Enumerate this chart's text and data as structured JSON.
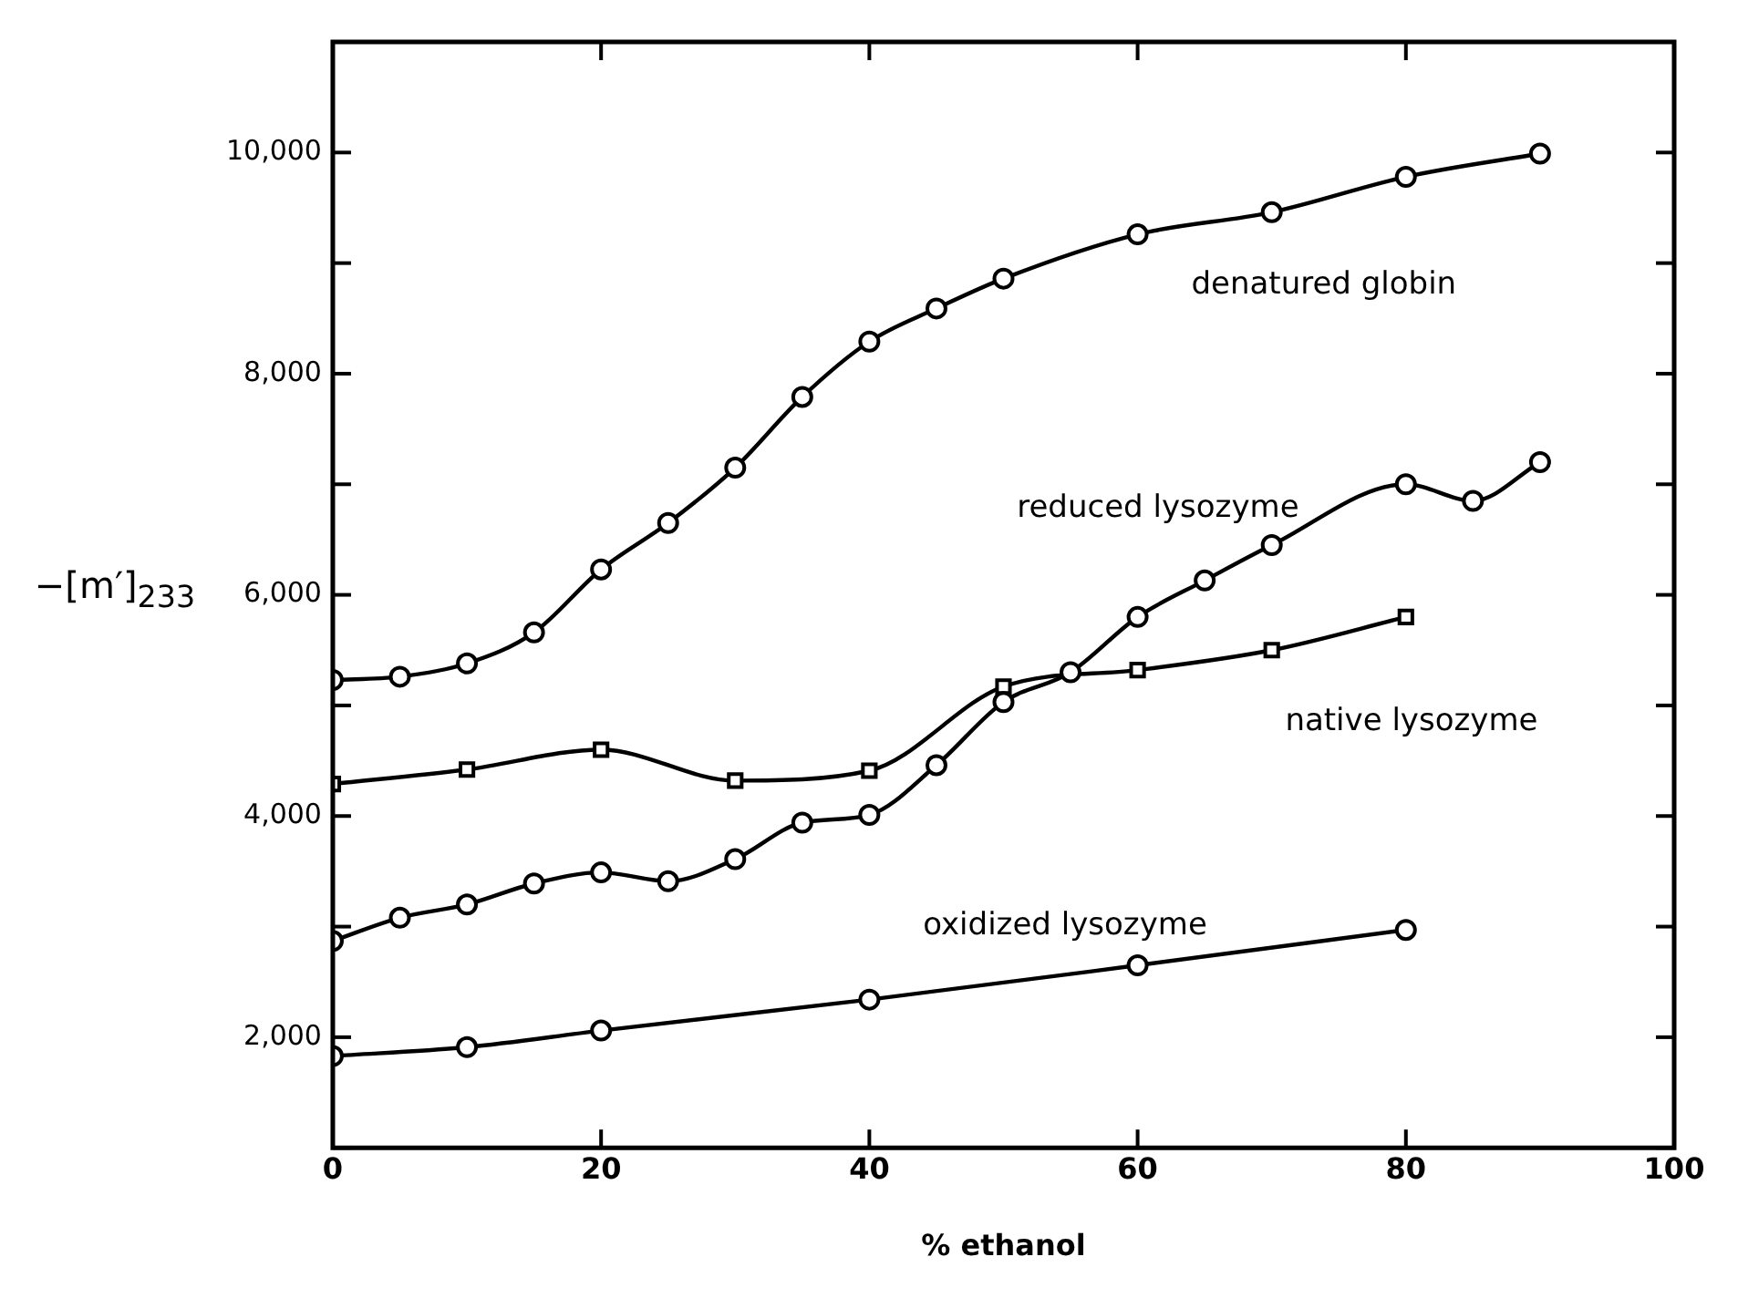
{
  "chart_data": {
    "type": "line",
    "xlabel": "% ethanol",
    "ylabel": "−[m′]$_{233}$",
    "xlim": [
      0,
      100
    ],
    "xticks": [
      0,
      20,
      40,
      60,
      80,
      100
    ],
    "ylim": [
      1000,
      11000
    ],
    "yticks": [
      {
        "value": 1000,
        "label": null
      },
      {
        "value": 2000,
        "label": "2,000"
      },
      {
        "value": 3000,
        "label": null
      },
      {
        "value": 4000,
        "label": "4,000"
      },
      {
        "value": 5000,
        "label": null
      },
      {
        "value": 6000,
        "label": "6,000"
      },
      {
        "value": 7000,
        "label": null
      },
      {
        "value": 8000,
        "label": "8,000"
      },
      {
        "value": 9000,
        "label": null
      },
      {
        "value": 10000,
        "label": "10,000"
      },
      {
        "value": 11000,
        "label": null
      }
    ],
    "grid": false,
    "legend": false,
    "line_style": "solid",
    "series": [
      {
        "name": "denatured globin",
        "color": "#000000",
        "marker": "circle",
        "x": [
          0,
          5,
          10,
          15,
          20,
          25,
          30,
          35,
          40,
          45,
          50,
          60,
          70,
          80,
          90
        ],
        "values": [
          5230,
          5260,
          5380,
          5660,
          6230,
          6650,
          7150,
          7790,
          8290,
          8590,
          8860,
          9260,
          9460,
          9780,
          9990
        ]
      },
      {
        "name": "reduced lysozyme",
        "color": "#000000",
        "marker": "circle",
        "x": [
          0,
          5,
          10,
          15,
          20,
          25,
          30,
          35,
          40,
          45,
          50,
          55,
          60,
          65,
          70,
          80,
          85,
          90
        ],
        "values": [
          2870,
          3080,
          3200,
          3390,
          3490,
          3410,
          3610,
          3940,
          4010,
          4460,
          5030,
          5300,
          5800,
          6130,
          6450,
          7000,
          6850,
          7200
        ]
      },
      {
        "name": "native lysozyme",
        "color": "#000000",
        "marker": "square",
        "x": [
          0,
          10,
          20,
          30,
          40,
          50,
          60,
          70,
          80
        ],
        "values": [
          4290,
          4420,
          4600,
          4320,
          4410,
          5170,
          5320,
          5500,
          5800
        ]
      },
      {
        "name": "oxidized lysozyme",
        "color": "#000000",
        "marker": "circle",
        "x": [
          0,
          10,
          20,
          40,
          60,
          80
        ],
        "values": [
          1830,
          1910,
          2060,
          2340,
          2650,
          2970
        ]
      }
    ]
  }
}
